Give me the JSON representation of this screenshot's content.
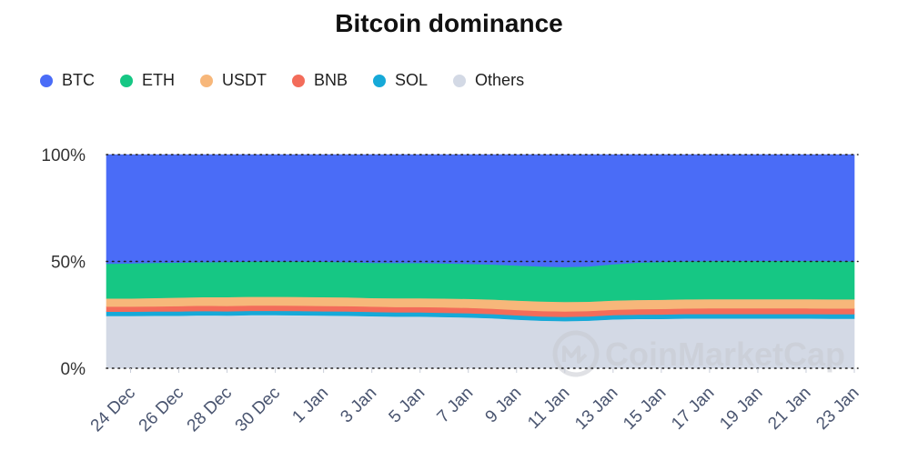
{
  "chart_data": {
    "type": "area",
    "stacked": true,
    "percent": true,
    "title": "Bitcoin dominance",
    "legend_position": "top-left",
    "grid": true,
    "ylim": [
      0,
      100
    ],
    "y_ticks": [
      "0%",
      "50%",
      "100%"
    ],
    "x_ticks": [
      "24 Dec",
      "26 Dec",
      "28 Dec",
      "30 Dec",
      "1 Jan",
      "3 Jan",
      "5 Jan",
      "7 Jan",
      "9 Jan",
      "11 Jan",
      "13 Jan",
      "15 Jan",
      "17 Jan",
      "19 Jan",
      "21 Jan",
      "23 Jan"
    ],
    "x": [
      "23 Dec",
      "24 Dec",
      "25 Dec",
      "26 Dec",
      "27 Dec",
      "28 Dec",
      "29 Dec",
      "30 Dec",
      "31 Dec",
      "1 Jan",
      "2 Jan",
      "3 Jan",
      "4 Jan",
      "5 Jan",
      "6 Jan",
      "7 Jan",
      "8 Jan",
      "9 Jan",
      "10 Jan",
      "11 Jan",
      "12 Jan",
      "13 Jan",
      "14 Jan",
      "15 Jan",
      "16 Jan",
      "17 Jan",
      "18 Jan",
      "19 Jan",
      "20 Jan",
      "21 Jan",
      "22 Jan",
      "23 Jan"
    ],
    "series": [
      {
        "name": "BTC",
        "color": "#4a6cf7",
        "values": [
          51.0,
          50.9,
          50.6,
          50.5,
          50.3,
          50.2,
          50.0,
          49.9,
          50.0,
          50.1,
          50.3,
          50.6,
          50.7,
          50.7,
          50.9,
          51.1,
          51.4,
          51.9,
          52.3,
          52.6,
          52.3,
          51.3,
          50.5,
          50.2,
          49.9,
          49.8,
          49.7,
          49.7,
          49.7,
          49.7,
          49.8,
          49.9
        ]
      },
      {
        "name": "ETH",
        "color": "#16c784",
        "values": [
          16.3,
          16.4,
          16.5,
          16.4,
          16.4,
          16.5,
          16.5,
          16.6,
          16.6,
          16.6,
          16.5,
          16.5,
          16.5,
          16.5,
          16.4,
          16.4,
          16.4,
          16.4,
          16.4,
          16.3,
          16.5,
          17.0,
          17.5,
          17.7,
          17.8,
          17.8,
          17.9,
          17.9,
          17.9,
          17.9,
          17.9,
          17.8
        ]
      },
      {
        "name": "USDT",
        "color": "#f7b77a",
        "values": [
          3.8,
          3.8,
          3.9,
          4.0,
          4.0,
          4.1,
          4.1,
          4.1,
          4.1,
          4.1,
          4.1,
          4.0,
          4.1,
          4.1,
          4.2,
          4.2,
          4.3,
          4.4,
          4.5,
          4.5,
          4.4,
          4.3,
          4.3,
          4.3,
          4.3,
          4.3,
          4.3,
          4.3,
          4.3,
          4.3,
          4.3,
          4.3
        ]
      },
      {
        "name": "BNB",
        "color": "#f36c5a",
        "values": [
          2.4,
          2.4,
          2.4,
          2.5,
          2.5,
          2.5,
          2.5,
          2.5,
          2.5,
          2.5,
          2.5,
          2.5,
          2.5,
          2.5,
          2.5,
          2.5,
          2.5,
          2.5,
          2.5,
          2.5,
          2.5,
          2.5,
          2.6,
          2.6,
          2.6,
          2.7,
          2.7,
          2.7,
          2.7,
          2.7,
          2.7,
          2.7
        ]
      },
      {
        "name": "SOL",
        "color": "#16a9d8",
        "values": [
          2.0,
          2.0,
          2.0,
          2.0,
          2.0,
          2.0,
          2.0,
          2.0,
          2.0,
          2.0,
          2.0,
          2.0,
          2.0,
          2.0,
          2.0,
          2.0,
          2.0,
          2.0,
          2.0,
          2.0,
          2.0,
          2.0,
          2.0,
          2.1,
          2.1,
          2.1,
          2.1,
          2.1,
          2.1,
          2.1,
          2.1,
          2.1
        ]
      },
      {
        "name": "Others",
        "color": "#d3d9e5",
        "values": [
          24.5,
          24.5,
          24.6,
          24.6,
          24.8,
          24.7,
          24.9,
          24.9,
          24.8,
          24.7,
          24.6,
          24.4,
          24.2,
          24.2,
          24.0,
          23.8,
          23.4,
          22.8,
          22.3,
          22.1,
          22.3,
          22.9,
          23.1,
          23.1,
          23.3,
          23.3,
          23.3,
          23.3,
          23.3,
          23.3,
          23.2,
          23.2
        ]
      }
    ]
  },
  "watermark": {
    "text": "CoinMarketCap",
    "icon": "coinmarketcap-logo-icon"
  },
  "colors": {
    "axis_label": "#4a5570",
    "grid": "#1f1f1f"
  }
}
